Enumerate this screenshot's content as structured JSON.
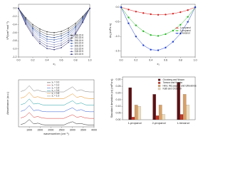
{
  "chart_data": [
    {
      "type": "line",
      "markers": true,
      "legend": "lower right",
      "x_label": "x₁",
      "y_label": "Vᴱ/(cm³ mol⁻¹)",
      "x": [
        0,
        0.1,
        0.2,
        0.3,
        0.4,
        0.5,
        0.6,
        0.7,
        0.8,
        0.9,
        1
      ],
      "xlim": [
        0,
        1
      ],
      "ylim": [
        -1.2,
        0.1
      ],
      "xticks": [
        {
          "value": 0,
          "label": "0.0"
        },
        0.2,
        0.4,
        0.6,
        0.8,
        {
          "value": 1,
          "label": "1.0"
        }
      ],
      "yticks": [
        -1.2,
        {
          "value": -1,
          "label": "-1.0"
        },
        -0.8,
        -0.6,
        -0.4,
        -0.2,
        {
          "value": 0,
          "label": "0.0"
        }
      ],
      "series": [
        {
          "name": "288.15 K",
          "color": "#2b2b2b",
          "values": [
            0,
            -0.23,
            -0.4,
            -0.51,
            -0.58,
            -0.6,
            -0.57,
            -0.49,
            -0.37,
            -0.2,
            0
          ]
        },
        {
          "name": "293.15 K",
          "color": "#5a5a5a",
          "values": [
            0,
            -0.25,
            -0.44,
            -0.56,
            -0.64,
            -0.66,
            -0.63,
            -0.54,
            -0.41,
            -0.22,
            0
          ]
        },
        {
          "name": "298.15 K",
          "color": "#1f3a7a",
          "values": [
            0,
            -0.27,
            -0.48,
            -0.61,
            -0.7,
            -0.72,
            -0.68,
            -0.59,
            -0.45,
            -0.24,
            0
          ]
        },
        {
          "name": "303.15 K",
          "color": "#3558a8",
          "values": [
            0,
            -0.3,
            -0.51,
            -0.66,
            -0.76,
            -0.78,
            -0.74,
            -0.64,
            -0.48,
            -0.27,
            0
          ]
        },
        {
          "name": "308.15 K",
          "color": "#6b7fc0",
          "values": [
            0,
            -0.32,
            -0.55,
            -0.71,
            -0.81,
            -0.84,
            -0.8,
            -0.69,
            -0.52,
            -0.29,
            0
          ]
        },
        {
          "name": "313.15 K",
          "color": "#8a8fb8",
          "values": [
            0,
            -0.34,
            -0.59,
            -0.77,
            -0.87,
            -0.9,
            -0.86,
            -0.74,
            -0.56,
            -0.31,
            0
          ]
        },
        {
          "name": "318.15 K",
          "color": "#4a4a8a",
          "values": [
            0,
            -0.36,
            -0.63,
            -0.82,
            -0.93,
            -0.96,
            -0.91,
            -0.79,
            -0.6,
            -0.33,
            0
          ]
        },
        {
          "name": "323.15 K",
          "color": "#23236a",
          "values": [
            0,
            -0.39,
            -0.67,
            -0.87,
            -0.99,
            -1.02,
            -0.97,
            -0.84,
            -0.63,
            -0.35,
            0
          ]
        }
      ]
    },
    {
      "type": "scatter",
      "fit_line": true,
      "legend": "center right",
      "x_label": "x₁",
      "y_label": "Δη (mPa·s)",
      "x": [
        0,
        0.1,
        0.2,
        0.3,
        0.4,
        0.5,
        0.6,
        0.7,
        0.8,
        0.9,
        1
      ],
      "xlim": [
        0,
        1
      ],
      "ylim": [
        -1.7,
        0.1
      ],
      "xticks": [
        {
          "value": 0,
          "label": "0.0"
        },
        0.2,
        0.4,
        0.6,
        0.8,
        {
          "value": 1,
          "label": "1.0"
        }
      ],
      "yticks": [
        -1.5,
        {
          "value": -1,
          "label": "-1.0"
        },
        -0.5,
        {
          "value": 0,
          "label": "0.0"
        }
      ],
      "series": [
        {
          "name": "1-propanol",
          "color": "#d62020",
          "values": [
            0,
            -0.08,
            -0.15,
            -0.2,
            -0.24,
            -0.26,
            -0.25,
            -0.22,
            -0.17,
            -0.1,
            0
          ]
        },
        {
          "name": "2-propanol",
          "color": "#22b822",
          "values": [
            0,
            -0.35,
            -0.62,
            -0.82,
            -0.95,
            -0.98,
            -0.92,
            -0.8,
            -0.6,
            -0.33,
            0
          ]
        },
        {
          "name": "1-hexanol",
          "color": "#1f3fd0",
          "values": [
            0,
            -0.55,
            -1.0,
            -1.3,
            -1.45,
            -1.47,
            -1.38,
            -1.18,
            -0.9,
            -0.5,
            0
          ]
        }
      ]
    },
    {
      "type": "line",
      "markers": false,
      "legend": "upper center",
      "x_label": "wavenumber (cm⁻¹)",
      "y_label": "Absorbance (a.u.)",
      "x": [
        600,
        800,
        1000,
        1200,
        1400,
        1600,
        1800,
        2000,
        2200,
        2400,
        2600,
        2800,
        3000,
        3200,
        3400,
        3600,
        3800,
        4000
      ],
      "xlim": [
        500,
        4000
      ],
      "ylim": [
        -0.2,
        6.2
      ],
      "xticks": [
        1000,
        1500,
        2000,
        2500,
        3000,
        3500,
        4000
      ],
      "series": [
        {
          "name": "x₁ = 0.0",
          "color": "#222222",
          "values": [
            0.1,
            0.3,
            0.8,
            0.2,
            0.3,
            0.1,
            0.05,
            0.05,
            0.05,
            0.05,
            0.05,
            0.3,
            0.5,
            0.2,
            0.25,
            0.1,
            0.05,
            0.05
          ]
        },
        {
          "name": "x₁ = 0.2",
          "color": "#d03030",
          "values": [
            1.0,
            1.2,
            1.75,
            1.1,
            1.2,
            1.0,
            0.95,
            0.95,
            0.95,
            0.95,
            0.95,
            1.2,
            1.45,
            1.1,
            1.2,
            1.0,
            0.95,
            0.95
          ]
        },
        {
          "name": "x₁ = 0.4",
          "color": "#2a55c8",
          "values": [
            1.9,
            2.1,
            2.7,
            2.0,
            2.1,
            1.9,
            1.85,
            1.85,
            1.85,
            1.85,
            1.85,
            2.15,
            2.4,
            2.0,
            2.15,
            1.9,
            1.85,
            1.85
          ]
        },
        {
          "name": "x₁ = 0.6",
          "color": "#1a9aa0",
          "values": [
            2.8,
            3.0,
            3.6,
            2.9,
            3.0,
            2.8,
            2.75,
            2.75,
            2.75,
            2.75,
            2.75,
            3.05,
            3.35,
            2.9,
            3.05,
            2.8,
            2.75,
            2.75
          ]
        },
        {
          "name": "x₁ = 0.8",
          "color": "#e08a1a",
          "values": [
            3.7,
            3.9,
            4.5,
            3.8,
            3.9,
            3.7,
            3.65,
            3.65,
            3.65,
            3.65,
            3.65,
            3.95,
            4.3,
            3.8,
            3.95,
            3.7,
            3.65,
            3.65
          ]
        },
        {
          "name": "x₁ = 1.0",
          "color": "#7a7a7a",
          "values": [
            4.6,
            4.8,
            5.4,
            4.7,
            4.8,
            4.6,
            4.55,
            4.55,
            4.55,
            4.55,
            4.55,
            4.9,
            5.25,
            4.7,
            4.85,
            4.6,
            4.55,
            4.55
          ]
        }
      ]
    },
    {
      "type": "bar",
      "legend": "upper right",
      "y_label": "Standard deviation (σ) (mPa·s)",
      "categories": [
        "1-propanol",
        "2-propanol",
        "1-hexanol"
      ],
      "ylim": [
        0,
        0.32
      ],
      "yticks": [
        {
          "value": 0,
          "label": "0.00"
        },
        0.05,
        {
          "value": 0.1,
          "label": "0.10"
        },
        0.15,
        {
          "value": 0.2,
          "label": "0.20"
        },
        0.25,
        {
          "value": 0.3,
          "label": "0.30"
        }
      ],
      "series": [
        {
          "name": "Grunberg and Nissan",
          "color": "#5c0f12",
          "values": [
            0.24,
            0.19,
            0.28
          ]
        },
        {
          "name": "Tamura and Kurata",
          "color": "#c0392b",
          "values": [
            0.02,
            0.03,
            0.04
          ]
        },
        {
          "name": "Hind, McLaughlin and Ubbelohde",
          "color": "#d9a066",
          "values": [
            0.11,
            0.11,
            0.19
          ]
        },
        {
          "name": "Katti and Chaudhri",
          "color": "#f0dcb8",
          "values": [
            0.1,
            0.04,
            0.11
          ]
        }
      ]
    }
  ]
}
